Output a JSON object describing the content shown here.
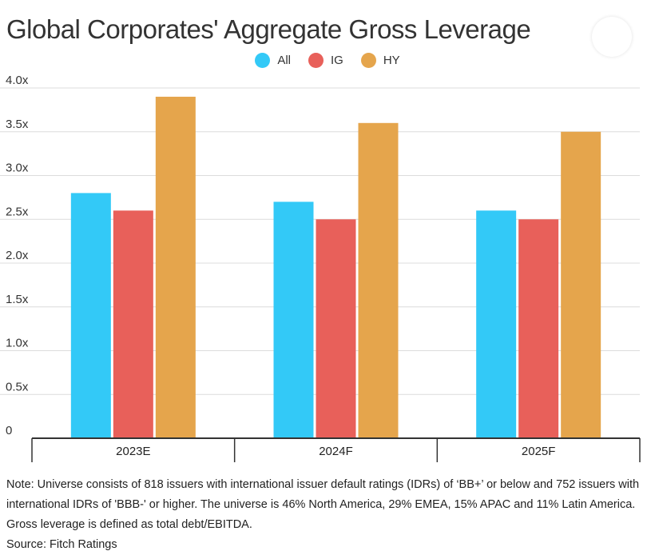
{
  "chart_data": {
    "type": "bar",
    "title": "Global Corporates' Aggregate Gross Leverage",
    "categories": [
      "2023E",
      "2024F",
      "2025F"
    ],
    "series": [
      {
        "name": "All",
        "color": "#33c9f7",
        "values": [
          2.8,
          2.7,
          2.6
        ]
      },
      {
        "name": "IG",
        "color": "#e8605a",
        "values": [
          2.6,
          2.5,
          2.5
        ]
      },
      {
        "name": "HY",
        "color": "#e5a54c",
        "values": [
          3.9,
          3.6,
          3.5
        ]
      }
    ],
    "ylim": [
      0,
      4.0
    ],
    "yticks": [
      "0",
      "0.5x",
      "1.0x",
      "1.5x",
      "2.0x",
      "2.5x",
      "3.0x",
      "3.5x",
      "4.0x"
    ],
    "grid": true,
    "legend_position": "top-center",
    "xlabel": "",
    "ylabel": ""
  },
  "note": "Note:  Universe consists of 818 issuers with international issuer default ratings (IDRs) of ‘BB+’ or below and 752 issuers with international IDRs of 'BBB-' or higher.  The universe is 46% North America, 29% EMEA, 15% APAC and 11% Latin America. Gross leverage is defined as total debt/EBITDA.",
  "source": "Source: Fitch Ratings"
}
